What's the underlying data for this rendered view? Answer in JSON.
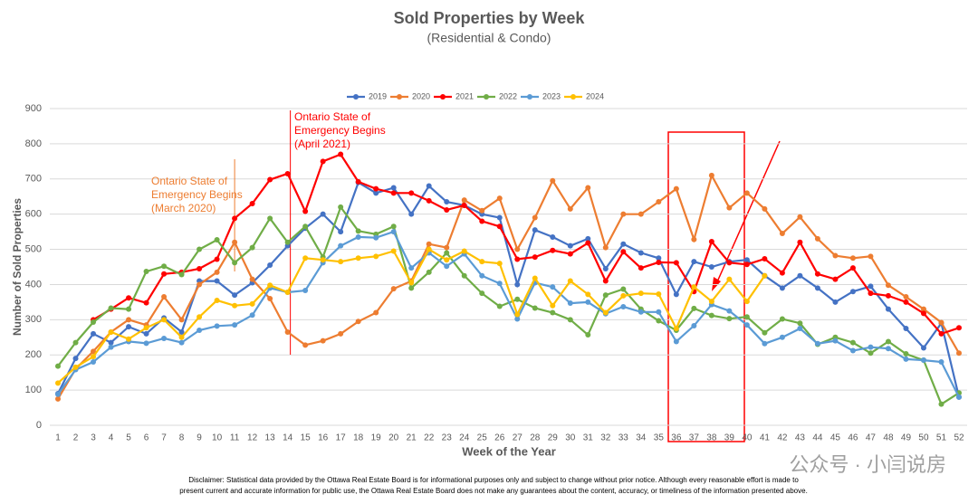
{
  "chart_data": {
    "type": "line",
    "title": "Sold Properties by Week",
    "subtitle": "(Residential & Condo)",
    "x_label": "Week of the Year",
    "y_label": "Number of Sold Properties",
    "categories": [
      1,
      2,
      3,
      4,
      5,
      6,
      7,
      8,
      9,
      10,
      11,
      12,
      13,
      14,
      15,
      16,
      17,
      18,
      19,
      20,
      21,
      22,
      23,
      24,
      25,
      26,
      27,
      28,
      29,
      30,
      31,
      32,
      33,
      34,
      35,
      36,
      37,
      38,
      39,
      40,
      41,
      42,
      43,
      44,
      45,
      46,
      47,
      48,
      49,
      50,
      51,
      52
    ],
    "ylim": [
      0,
      900
    ],
    "yticks": [
      0,
      100,
      200,
      300,
      400,
      500,
      600,
      700,
      800,
      900
    ],
    "grid": true,
    "legend": "top",
    "series": [
      {
        "name": "2019",
        "color": "#4472c4",
        "values": [
          90,
          190,
          260,
          235,
          280,
          260,
          305,
          265,
          410,
          410,
          370,
          405,
          455,
          510,
          560,
          600,
          550,
          690,
          660,
          675,
          600,
          680,
          635,
          625,
          600,
          590,
          400,
          555,
          535,
          510,
          530,
          445,
          515,
          490,
          475,
          372,
          465,
          450,
          465,
          470,
          425,
          390,
          425,
          390,
          350,
          380,
          395,
          330,
          275,
          220,
          290,
          80
        ]
      },
      {
        "name": "2020",
        "color": "#ed7d31",
        "values": [
          75,
          160,
          210,
          265,
          300,
          285,
          365,
          300,
          400,
          435,
          520,
          415,
          360,
          265,
          228,
          240,
          260,
          295,
          320,
          388,
          410,
          515,
          505,
          640,
          610,
          645,
          500,
          590,
          695,
          615,
          675,
          505,
          600,
          600,
          635,
          672,
          528,
          710,
          618,
          660,
          615,
          545,
          592,
          530,
          482,
          475,
          480,
          398,
          365,
          330,
          292,
          205
        ]
      },
      {
        "name": "2021",
        "color": "#ff0000",
        "values": [
          null,
          null,
          300,
          330,
          362,
          348,
          430,
          435,
          445,
          472,
          588,
          630,
          698,
          715,
          608,
          750,
          770,
          692,
          672,
          660,
          660,
          638,
          612,
          625,
          580,
          565,
          472,
          478,
          497,
          487,
          518,
          410,
          493,
          447,
          463,
          462,
          380,
          522,
          462,
          457,
          473,
          433,
          520,
          430,
          415,
          447,
          375,
          368,
          350,
          318,
          260,
          277
        ]
      },
      {
        "name": "2022",
        "color": "#70ad47",
        "values": [
          168,
          235,
          293,
          333,
          330,
          437,
          452,
          428,
          500,
          527,
          462,
          505,
          588,
          520,
          565,
          478,
          620,
          552,
          543,
          565,
          390,
          435,
          490,
          425,
          375,
          338,
          358,
          333,
          320,
          300,
          257,
          370,
          387,
          330,
          297,
          270,
          332,
          312,
          303,
          308,
          263,
          302,
          290,
          230,
          250,
          235,
          205,
          238,
          203,
          185,
          60,
          92
        ]
      },
      {
        "name": "2023",
        "color": "#5b9bd5",
        "values": [
          88,
          158,
          180,
          222,
          238,
          233,
          247,
          235,
          270,
          282,
          285,
          313,
          390,
          378,
          383,
          462,
          510,
          535,
          533,
          550,
          447,
          490,
          452,
          487,
          425,
          403,
          302,
          405,
          393,
          347,
          350,
          317,
          337,
          322,
          322,
          238,
          283,
          343,
          325,
          285,
          232,
          250,
          275,
          232,
          240,
          212,
          222,
          218,
          188,
          185,
          180,
          80
        ]
      },
      {
        "name": "2024",
        "color": "#ffc000",
        "values": [
          120,
          165,
          195,
          265,
          245,
          277,
          300,
          250,
          308,
          355,
          340,
          345,
          398,
          378,
          475,
          470,
          465,
          475,
          480,
          495,
          405,
          500,
          470,
          495,
          465,
          460,
          315,
          418,
          340,
          410,
          372,
          320,
          368,
          375,
          373,
          275,
          393,
          352,
          415,
          352,
          425,
          null,
          null,
          null,
          null,
          null,
          null,
          null,
          null,
          null,
          null,
          null
        ]
      }
    ],
    "annotations": [
      {
        "lines": [
          "Ontario State of",
          "Emergency Begins",
          "(March 2020)"
        ],
        "color": "#ed7d31"
      },
      {
        "lines": [
          "Ontario State of",
          "Emergency Begins",
          "(April 2021)"
        ],
        "color": "#ff0000"
      }
    ]
  },
  "disclaimer": [
    "Disclaimer: Statistical data provided by the Ottawa Real Estate Board is for informational purposes only and subject to change without prior notice. Although every reasonable effort is made to",
    "present current and accurate information for public use, the Ottawa Real Estate Board does not make any guarantees about the content, accuracy, or timeliness of the information presented above."
  ],
  "watermark": "公众号 · 小闫说房"
}
